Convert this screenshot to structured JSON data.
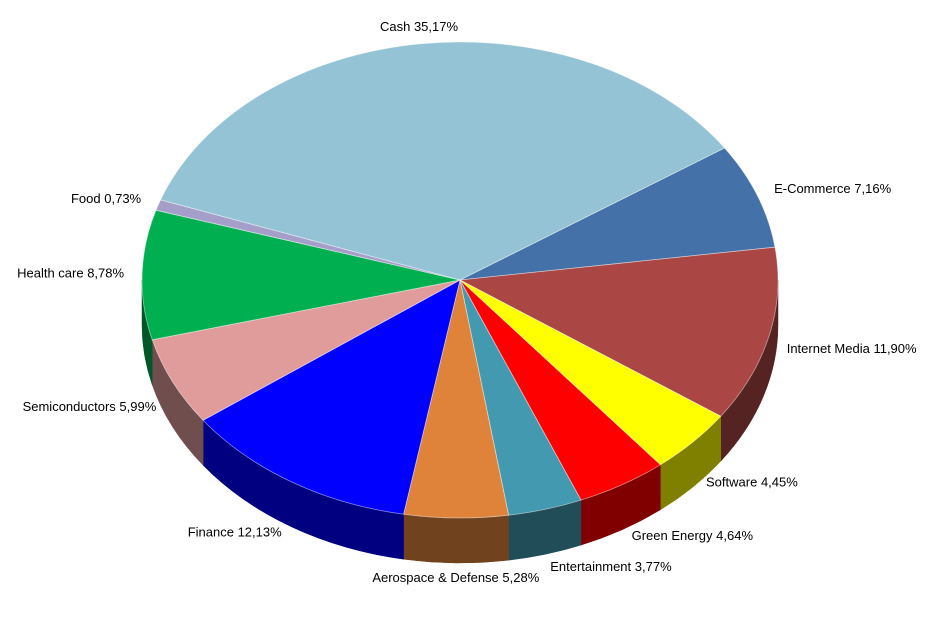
{
  "chart_data": {
    "type": "pie",
    "categories": [
      "E-Commerce",
      "Internet Media",
      "Software",
      "Green Energy",
      "Entertainment",
      "Aerospace & Defense",
      "Finance",
      "Semiconductors",
      "Health care",
      "Food",
      "Cash"
    ],
    "values": [
      7.16,
      11.9,
      4.45,
      4.64,
      3.77,
      5.28,
      12.13,
      5.99,
      8.78,
      0.73,
      35.17
    ],
    "value_labels": [
      "7,16%",
      "11,90%",
      "4,45%",
      "4,64%",
      "3,77%",
      "5,28%",
      "12,13%",
      "5,99%",
      "8,78%",
      "0,73%",
      "35,17%"
    ],
    "colors": [
      "#4472a8",
      "#aa4644",
      "#ffff00",
      "#ff0000",
      "#4299b0",
      "#e0833a",
      "#0000ff",
      "#e09c9a",
      "#00b050",
      "#a59ec8",
      "#93c3d5"
    ]
  }
}
